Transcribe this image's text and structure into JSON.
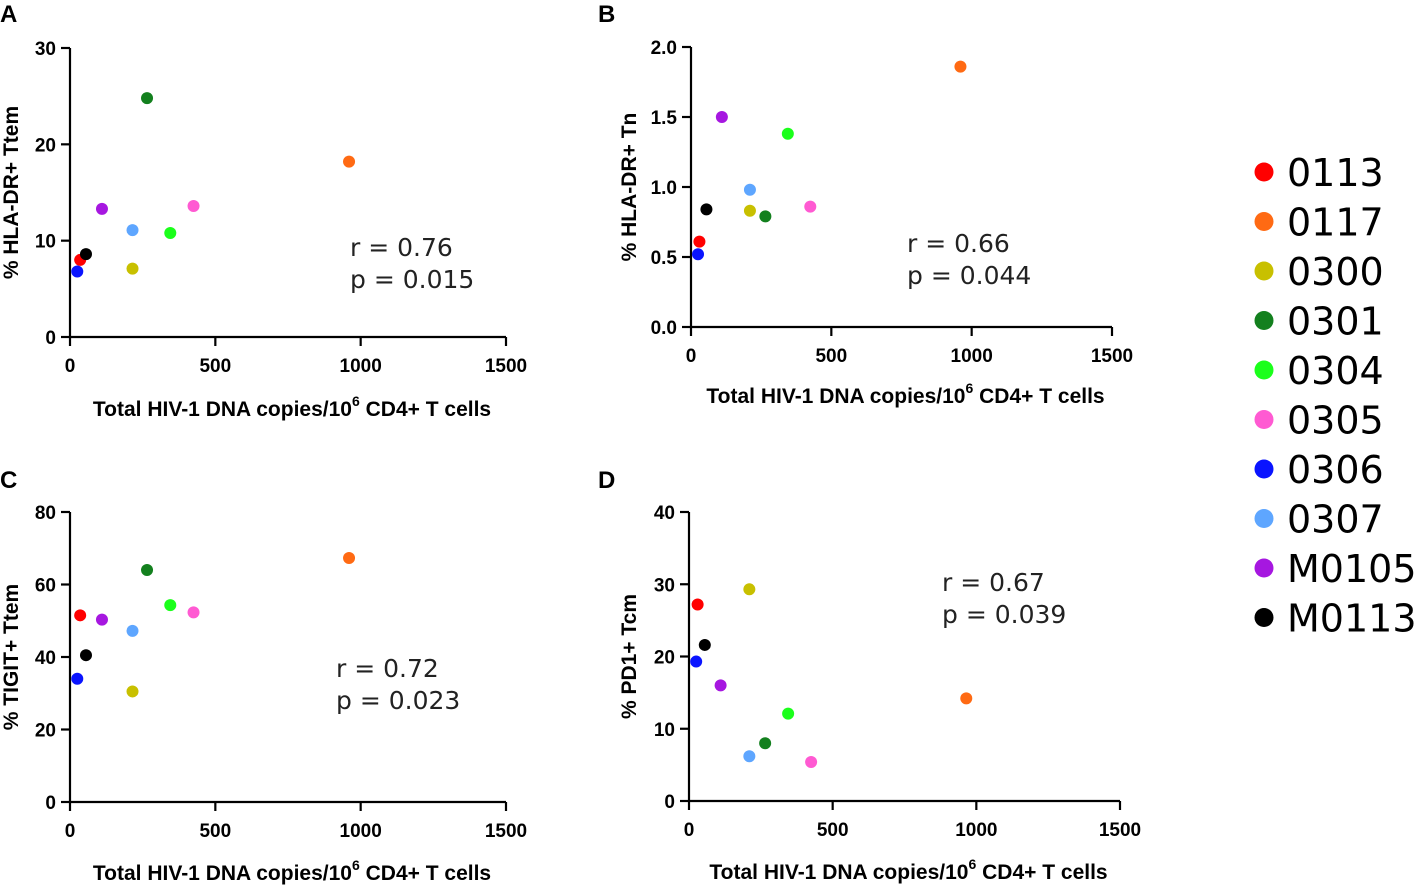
{
  "subjects": [
    {
      "id": "0113",
      "color": "#ff0000"
    },
    {
      "id": "0117",
      "color": "#ff6a13"
    },
    {
      "id": "0300",
      "color": "#c8c000"
    },
    {
      "id": "0301",
      "color": "#13801e"
    },
    {
      "id": "0304",
      "color": "#1bff1b"
    },
    {
      "id": "0305",
      "color": "#ff5ad2"
    },
    {
      "id": "0306",
      "color": "#0a14ff"
    },
    {
      "id": "0307",
      "color": "#5ea6ff"
    },
    {
      "id": "M0105",
      "color": "#a617e0"
    },
    {
      "id": "M0113",
      "color": "#000000"
    }
  ],
  "x_axis_title_main": "Total HIV-1 DNA copies/10",
  "x_axis_title_sup": "6",
  "x_axis_title_tail": " CD4+ T cells",
  "chart_data": [
    {
      "type": "scatter",
      "panel": "A",
      "ylabel": "% HLA-DR+ Ttem",
      "xlim": [
        0,
        1500
      ],
      "xticks": [
        0,
        500,
        1000,
        1500
      ],
      "ylim": [
        0,
        30
      ],
      "yticks": [
        0,
        10,
        20,
        30
      ],
      "ytick_labels": [
        "0",
        "10",
        "20",
        "30"
      ],
      "stat_r": "r = 0.76",
      "stat_p": "p = 0.015",
      "points": [
        {
          "subject": "0113",
          "x": 35,
          "y": 8.0
        },
        {
          "subject": "0117",
          "x": 960,
          "y": 18.2
        },
        {
          "subject": "0300",
          "x": 215,
          "y": 7.1
        },
        {
          "subject": "0301",
          "x": 265,
          "y": 24.8
        },
        {
          "subject": "0304",
          "x": 345,
          "y": 10.8
        },
        {
          "subject": "0305",
          "x": 425,
          "y": 13.6
        },
        {
          "subject": "0306",
          "x": 25,
          "y": 6.8
        },
        {
          "subject": "0307",
          "x": 215,
          "y": 11.1
        },
        {
          "subject": "M0105",
          "x": 110,
          "y": 13.3
        },
        {
          "subject": "M0113",
          "x": 55,
          "y": 8.6
        }
      ]
    },
    {
      "type": "scatter",
      "panel": "B",
      "ylabel": "% HLA-DR+ Tn",
      "xlim": [
        0,
        1500
      ],
      "xticks": [
        0,
        500,
        1000,
        1500
      ],
      "ylim": [
        0,
        2
      ],
      "yticks": [
        0,
        0.5,
        1.0,
        1.5,
        2.0
      ],
      "ytick_labels": [
        "0.0",
        "0.5",
        "1.0",
        "1.5",
        "2.0"
      ],
      "stat_r": "r = 0.66",
      "stat_p": "p = 0.044",
      "points": [
        {
          "subject": "0113",
          "x": 30,
          "y": 0.61
        },
        {
          "subject": "0117",
          "x": 960,
          "y": 1.86
        },
        {
          "subject": "0300",
          "x": 210,
          "y": 0.83
        },
        {
          "subject": "0301",
          "x": 265,
          "y": 0.79
        },
        {
          "subject": "0304",
          "x": 345,
          "y": 1.38
        },
        {
          "subject": "0305",
          "x": 425,
          "y": 0.86
        },
        {
          "subject": "0306",
          "x": 25,
          "y": 0.52
        },
        {
          "subject": "0307",
          "x": 210,
          "y": 0.98
        },
        {
          "subject": "M0105",
          "x": 110,
          "y": 1.5
        },
        {
          "subject": "M0113",
          "x": 55,
          "y": 0.84
        }
      ]
    },
    {
      "type": "scatter",
      "panel": "C",
      "ylabel": "% TIGIT+ Ttem",
      "xlim": [
        0,
        1500
      ],
      "xticks": [
        0,
        500,
        1000,
        1500
      ],
      "ylim": [
        0,
        80
      ],
      "yticks": [
        0,
        20,
        40,
        60,
        80
      ],
      "ytick_labels": [
        "0",
        "20",
        "40",
        "60",
        "80"
      ],
      "stat_r": "r = 0.72",
      "stat_p": "p = 0.023",
      "points": [
        {
          "subject": "0113",
          "x": 35,
          "y": 51.5
        },
        {
          "subject": "0117",
          "x": 960,
          "y": 67.3
        },
        {
          "subject": "0300",
          "x": 215,
          "y": 30.5
        },
        {
          "subject": "0301",
          "x": 265,
          "y": 64.0
        },
        {
          "subject": "0304",
          "x": 345,
          "y": 54.3
        },
        {
          "subject": "0305",
          "x": 425,
          "y": 52.3
        },
        {
          "subject": "0306",
          "x": 25,
          "y": 34.0
        },
        {
          "subject": "0307",
          "x": 215,
          "y": 47.2
        },
        {
          "subject": "M0105",
          "x": 110,
          "y": 50.3
        },
        {
          "subject": "M0113",
          "x": 55,
          "y": 40.5
        }
      ]
    },
    {
      "type": "scatter",
      "panel": "D",
      "ylabel": "% PD1+ Tcm",
      "xlim": [
        0,
        1500
      ],
      "xticks": [
        0,
        500,
        1000,
        1500
      ],
      "ylim": [
        0,
        40
      ],
      "yticks": [
        0,
        10,
        20,
        30,
        40
      ],
      "ytick_labels": [
        "0",
        "10",
        "20",
        "30",
        "40"
      ],
      "stat_r": "r = 0.67",
      "stat_p": "p = 0.039",
      "points": [
        {
          "subject": "0113",
          "x": 30,
          "y": 27.2
        },
        {
          "subject": "0117",
          "x": 965,
          "y": 14.2
        },
        {
          "subject": "0300",
          "x": 210,
          "y": 29.3
        },
        {
          "subject": "0301",
          "x": 265,
          "y": 8.0
        },
        {
          "subject": "0304",
          "x": 345,
          "y": 12.1
        },
        {
          "subject": "0305",
          "x": 425,
          "y": 5.4
        },
        {
          "subject": "0306",
          "x": 25,
          "y": 19.3
        },
        {
          "subject": "0307",
          "x": 210,
          "y": 6.2
        },
        {
          "subject": "M0105",
          "x": 110,
          "y": 16.0
        },
        {
          "subject": "M0113",
          "x": 55,
          "y": 21.6
        }
      ]
    }
  ]
}
